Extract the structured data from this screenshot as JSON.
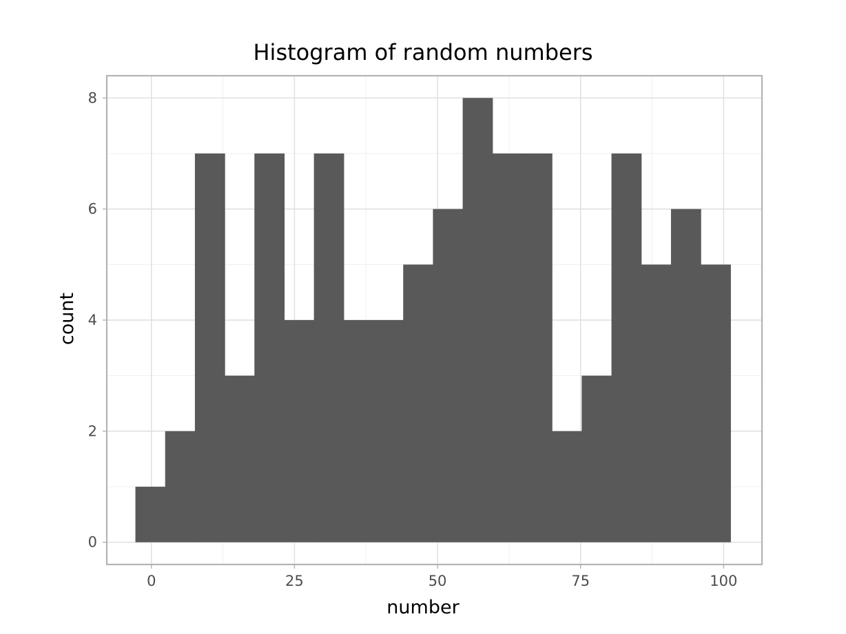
{
  "chart_data": {
    "type": "bar",
    "title": "Histogram of random numbers",
    "xlabel": "number",
    "ylabel": "count",
    "bin_width": 5.2,
    "bins": [
      {
        "start": -2.8,
        "end": 2.4,
        "count": 1
      },
      {
        "start": 2.4,
        "end": 7.6,
        "count": 2
      },
      {
        "start": 7.6,
        "end": 12.8,
        "count": 7
      },
      {
        "start": 12.8,
        "end": 18.0,
        "count": 3
      },
      {
        "start": 18.0,
        "end": 23.2,
        "count": 7
      },
      {
        "start": 23.2,
        "end": 28.4,
        "count": 4
      },
      {
        "start": 28.4,
        "end": 33.6,
        "count": 7
      },
      {
        "start": 33.6,
        "end": 38.8,
        "count": 4
      },
      {
        "start": 38.8,
        "end": 44.0,
        "count": 4
      },
      {
        "start": 44.0,
        "end": 49.2,
        "count": 5
      },
      {
        "start": 49.2,
        "end": 54.4,
        "count": 6
      },
      {
        "start": 54.4,
        "end": 59.6,
        "count": 8
      },
      {
        "start": 59.6,
        "end": 64.8,
        "count": 7
      },
      {
        "start": 64.8,
        "end": 70.0,
        "count": 7
      },
      {
        "start": 70.0,
        "end": 75.2,
        "count": 2
      },
      {
        "start": 75.2,
        "end": 80.4,
        "count": 3
      },
      {
        "start": 80.4,
        "end": 85.6,
        "count": 7
      },
      {
        "start": 85.6,
        "end": 90.8,
        "count": 5
      },
      {
        "start": 90.8,
        "end": 96.0,
        "count": 6
      },
      {
        "start": 96.0,
        "end": 101.2,
        "count": 5
      }
    ],
    "xlim": [
      -7.8,
      106.7
    ],
    "ylim": [
      -0.4,
      8.4
    ],
    "x_ticks": [
      0,
      25,
      50,
      75,
      100
    ],
    "y_ticks": [
      0,
      2,
      4,
      6,
      8
    ],
    "x_tick_labels": [
      "0",
      "25",
      "50",
      "75",
      "100"
    ],
    "y_tick_labels": [
      "0",
      "2",
      "4",
      "6",
      "8"
    ],
    "grid": true,
    "legend": "none",
    "colors": {
      "bar_fill": "#595959",
      "panel_background": "#ffffff",
      "grid_major": "#dedede",
      "grid_minor": "#efefef",
      "panel_border": "#b3b3b3",
      "tick_text": "#4d4d4d"
    }
  }
}
